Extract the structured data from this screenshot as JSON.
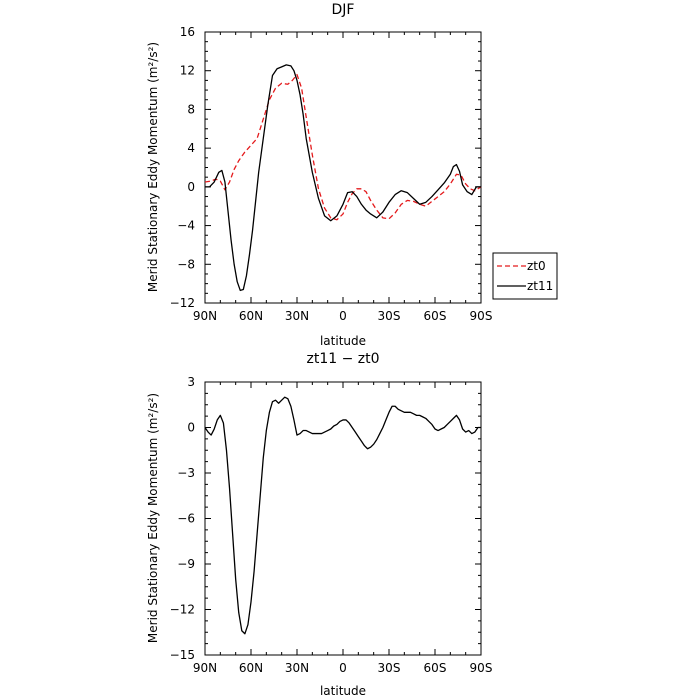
{
  "chart_data": [
    {
      "type": "line",
      "title": "DJF",
      "xlabel": "latitude",
      "ylabel": "Merid Stationary Eddy Momentum (m²/s²)",
      "xlim": [
        90,
        -90
      ],
      "ylim": [
        -12,
        16
      ],
      "x_ticks": [
        90,
        60,
        30,
        0,
        -30,
        -60,
        -90
      ],
      "x_tick_labels": [
        "90N",
        "60N",
        "30N",
        "0",
        "30S",
        "60S",
        "90S"
      ],
      "y_ticks": [
        -12,
        -8,
        -4,
        0,
        4,
        8,
        12,
        16
      ],
      "y_tick_labels": [
        "−12",
        "−8",
        "−4",
        "0",
        "4",
        "8",
        "12",
        "16"
      ],
      "legend_position": "right",
      "series": [
        {
          "name": "zt0",
          "color": "#e41a1c",
          "dash": "dashed",
          "x": [
            90,
            86,
            83,
            80,
            77,
            74,
            71,
            68,
            64,
            60,
            56,
            52,
            48,
            44,
            40,
            36,
            33,
            30,
            27,
            24,
            20,
            16,
            12,
            8,
            4,
            0,
            -3,
            -6,
            -9,
            -12,
            -15,
            -18,
            -22,
            -26,
            -30,
            -34,
            -38,
            -42,
            -46,
            -50,
            -54,
            -58,
            -62,
            -66,
            -70,
            -74,
            -77,
            -80,
            -83,
            -86,
            -90
          ],
          "y": [
            0.5,
            0.6,
            0.8,
            0.6,
            -0.3,
            0.5,
            1.8,
            2.7,
            3.6,
            4.3,
            5.0,
            7.0,
            9.0,
            10.2,
            10.7,
            10.6,
            11.0,
            11.6,
            10.2,
            7.2,
            3.3,
            -0.2,
            -2.2,
            -3.2,
            -3.4,
            -2.8,
            -1.6,
            -0.7,
            -0.2,
            -0.2,
            -0.5,
            -1.4,
            -2.4,
            -3.2,
            -3.3,
            -2.7,
            -1.8,
            -1.4,
            -1.5,
            -1.8,
            -2.0,
            -1.5,
            -1.0,
            -0.5,
            0.3,
            1.3,
            1.2,
            0.3,
            -0.2,
            -0.4,
            0.0
          ]
        },
        {
          "name": "zt11",
          "color": "#000000",
          "dash": "solid",
          "x": [
            90,
            87,
            84,
            81,
            79,
            77,
            75,
            73,
            71,
            69,
            67,
            65,
            63,
            61,
            59,
            57,
            55,
            52,
            49,
            46,
            43,
            40,
            37,
            34,
            32,
            30,
            28,
            26,
            24,
            20,
            16,
            12,
            8,
            4,
            0,
            -3,
            -6,
            -9,
            -12,
            -15,
            -18,
            -22,
            -26,
            -30,
            -34,
            -38,
            -42,
            -46,
            -50,
            -54,
            -58,
            -62,
            -66,
            -70,
            -72,
            -74,
            -76,
            -78,
            -81,
            -84,
            -87,
            -90
          ],
          "y": [
            0.0,
            0.0,
            0.5,
            1.5,
            1.7,
            0.5,
            -2.5,
            -5.5,
            -8.0,
            -9.8,
            -10.7,
            -10.6,
            -9.2,
            -7.0,
            -4.5,
            -1.5,
            1.5,
            5.0,
            8.5,
            11.5,
            12.2,
            12.4,
            12.6,
            12.5,
            12.0,
            11.0,
            9.5,
            7.5,
            5.0,
            1.5,
            -1.2,
            -3.0,
            -3.5,
            -3.0,
            -1.8,
            -0.6,
            -0.5,
            -1.0,
            -1.8,
            -2.4,
            -2.8,
            -3.2,
            -2.6,
            -1.6,
            -0.8,
            -0.4,
            -0.6,
            -1.2,
            -1.8,
            -1.6,
            -1.0,
            -0.3,
            0.4,
            1.3,
            2.1,
            2.3,
            1.6,
            0.2,
            -0.5,
            -0.8,
            0.0,
            0.0
          ]
        }
      ]
    },
    {
      "type": "line",
      "title": "zt11 − zt0",
      "xlabel": "latitude",
      "ylabel": "Merid Stationary Eddy Momentum (m²/s²)",
      "xlim": [
        90,
        -90
      ],
      "ylim": [
        -15,
        3
      ],
      "x_ticks": [
        90,
        60,
        30,
        0,
        -30,
        -60,
        -90
      ],
      "x_tick_labels": [
        "90N",
        "60N",
        "30N",
        "0",
        "30S",
        "60S",
        "90S"
      ],
      "y_ticks": [
        -15,
        -12,
        -9,
        -6,
        -3,
        0,
        3
      ],
      "y_tick_labels": [
        "−15",
        "−12",
        "−9",
        "−6",
        "−3",
        "0",
        "3"
      ],
      "series": [
        {
          "color": "#000000",
          "dash": "solid",
          "x": [
            90,
            88,
            86,
            84,
            82,
            80,
            78,
            76,
            74,
            72,
            70,
            68,
            66,
            64,
            62,
            60,
            58,
            56,
            54,
            52,
            50,
            48,
            46,
            44,
            42,
            40,
            38,
            36,
            34,
            32,
            30,
            28,
            26,
            24,
            22,
            20,
            18,
            16,
            14,
            12,
            10,
            8,
            6,
            4,
            2,
            0,
            -2,
            -4,
            -6,
            -8,
            -10,
            -12,
            -14,
            -16,
            -18,
            -20,
            -22,
            -24,
            -26,
            -28,
            -30,
            -32,
            -34,
            -36,
            -38,
            -40,
            -42,
            -44,
            -46,
            -48,
            -50,
            -52,
            -54,
            -56,
            -58,
            -60,
            -62,
            -64,
            -66,
            -68,
            -70,
            -72,
            -74,
            -76,
            -78,
            -80,
            -82,
            -84,
            -86,
            -88,
            -90
          ],
          "y": [
            0.0,
            -0.3,
            -0.5,
            -0.1,
            0.5,
            0.8,
            0.3,
            -1.5,
            -4.0,
            -7.0,
            -10.0,
            -12.2,
            -13.4,
            -13.6,
            -13.0,
            -11.5,
            -9.5,
            -7.0,
            -4.5,
            -2.0,
            -0.2,
            1.0,
            1.7,
            1.8,
            1.6,
            1.8,
            2.0,
            1.9,
            1.4,
            0.5,
            -0.5,
            -0.4,
            -0.2,
            -0.2,
            -0.3,
            -0.4,
            -0.4,
            -0.4,
            -0.4,
            -0.3,
            -0.2,
            -0.1,
            0.1,
            0.2,
            0.4,
            0.5,
            0.5,
            0.3,
            0.0,
            -0.3,
            -0.6,
            -0.9,
            -1.2,
            -1.4,
            -1.3,
            -1.1,
            -0.8,
            -0.4,
            0.0,
            0.5,
            1.0,
            1.4,
            1.4,
            1.2,
            1.1,
            1.0,
            1.0,
            1.0,
            0.9,
            0.8,
            0.8,
            0.7,
            0.6,
            0.4,
            0.2,
            -0.1,
            -0.2,
            -0.1,
            0.0,
            0.2,
            0.4,
            0.6,
            0.8,
            0.5,
            -0.1,
            -0.3,
            -0.2,
            -0.4,
            -0.3,
            0.0,
            0.0
          ]
        }
      ]
    }
  ]
}
